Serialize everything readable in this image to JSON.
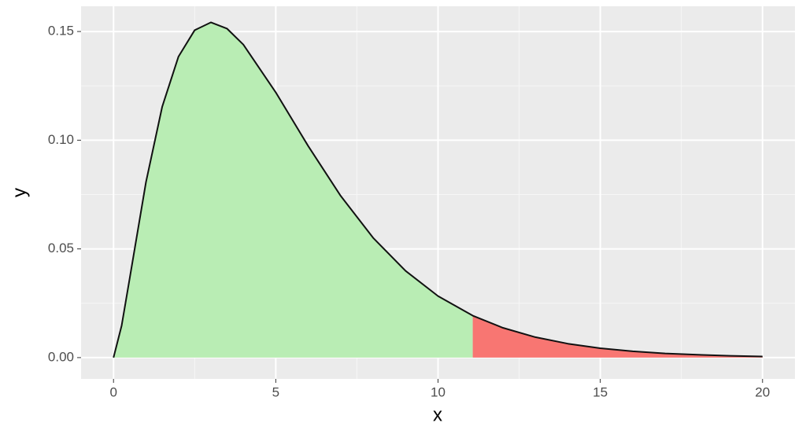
{
  "chart_data": {
    "type": "area",
    "x_label": "x",
    "y_label": "y",
    "x": [
      0,
      0.25,
      0.5,
      1,
      1.5,
      2,
      2.5,
      3,
      3.5,
      4,
      5,
      6,
      7,
      8,
      9,
      10,
      11.07,
      12,
      13,
      14,
      15,
      16,
      17,
      18,
      19,
      20
    ],
    "values": [
      0,
      0.0147,
      0.0366,
      0.0807,
      0.1154,
      0.1384,
      0.1506,
      0.1542,
      0.1513,
      0.144,
      0.122,
      0.0973,
      0.0744,
      0.0551,
      0.0399,
      0.0283,
      0.0193,
      0.0137,
      0.0094,
      0.0064,
      0.0043,
      0.0029,
      0.0019,
      0.0013,
      0.0008,
      0.0005
    ],
    "line_color": "#111111",
    "fill_regions": [
      {
        "from": 0,
        "to": 11.07,
        "color": "#b9edb4"
      },
      {
        "from": 11.07,
        "to": 20,
        "color": "#f87672"
      }
    ],
    "xlim": [
      -1,
      21
    ],
    "ylim": [
      -0.0098,
      0.1616
    ],
    "xticks": [
      0,
      5,
      10,
      15,
      20
    ],
    "yticks": [
      {
        "value": 0,
        "label": "0.00"
      },
      {
        "value": 0.05,
        "label": "0.05"
      },
      {
        "value": 0.1,
        "label": "0.10"
      },
      {
        "value": 0.15,
        "label": "0.15"
      }
    ],
    "minor_xticks": [
      2.5,
      7.5,
      12.5,
      17.5
    ],
    "minor_yticks": [
      0.025,
      0.075,
      0.125
    ],
    "grid": true
  }
}
